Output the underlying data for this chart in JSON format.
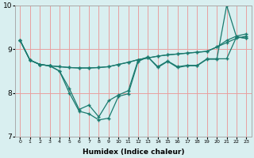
{
  "xlabel": "Humidex (Indice chaleur)",
  "x": [
    0,
    1,
    2,
    3,
    4,
    5,
    6,
    7,
    8,
    9,
    10,
    11,
    12,
    13,
    14,
    15,
    16,
    17,
    18,
    19,
    20,
    21,
    22,
    23
  ],
  "line1": [
    9.2,
    8.75,
    8.65,
    8.62,
    8.6,
    8.58,
    8.57,
    8.57,
    8.58,
    8.6,
    8.65,
    8.7,
    8.76,
    8.8,
    8.84,
    8.87,
    8.89,
    8.91,
    8.93,
    8.95,
    9.05,
    9.15,
    9.25,
    9.3
  ],
  "line2": [
    9.2,
    8.75,
    8.65,
    8.62,
    8.6,
    8.58,
    8.57,
    8.57,
    8.58,
    8.6,
    8.65,
    8.7,
    8.76,
    8.8,
    8.84,
    8.87,
    8.89,
    8.91,
    8.93,
    8.95,
    9.05,
    9.2,
    9.3,
    9.35
  ],
  "line3": [
    9.2,
    8.75,
    8.65,
    8.62,
    8.5,
    8.1,
    7.62,
    7.72,
    7.45,
    7.82,
    7.95,
    8.05,
    8.75,
    8.82,
    8.6,
    8.73,
    8.6,
    8.63,
    8.63,
    8.78,
    8.78,
    8.78,
    9.28,
    9.25
  ],
  "line4": [
    9.2,
    8.75,
    8.65,
    8.62,
    8.5,
    8.0,
    7.58,
    7.52,
    7.38,
    7.42,
    7.92,
    7.98,
    8.72,
    8.82,
    8.58,
    8.72,
    8.58,
    8.62,
    8.62,
    8.77,
    8.77,
    10.0,
    9.28,
    9.25
  ],
  "color": "#1a7a6e",
  "bg_color": "#d9eff0",
  "vgrid_color": "#e8a0a0",
  "hgrid_color": "#e8a0a0",
  "ylim": [
    7.0,
    10.0
  ],
  "xlim": [
    -0.5,
    23.5
  ],
  "yticks": [
    7,
    8,
    9,
    10
  ],
  "marker": "+",
  "markersize": 3.5,
  "linewidth": 0.9
}
